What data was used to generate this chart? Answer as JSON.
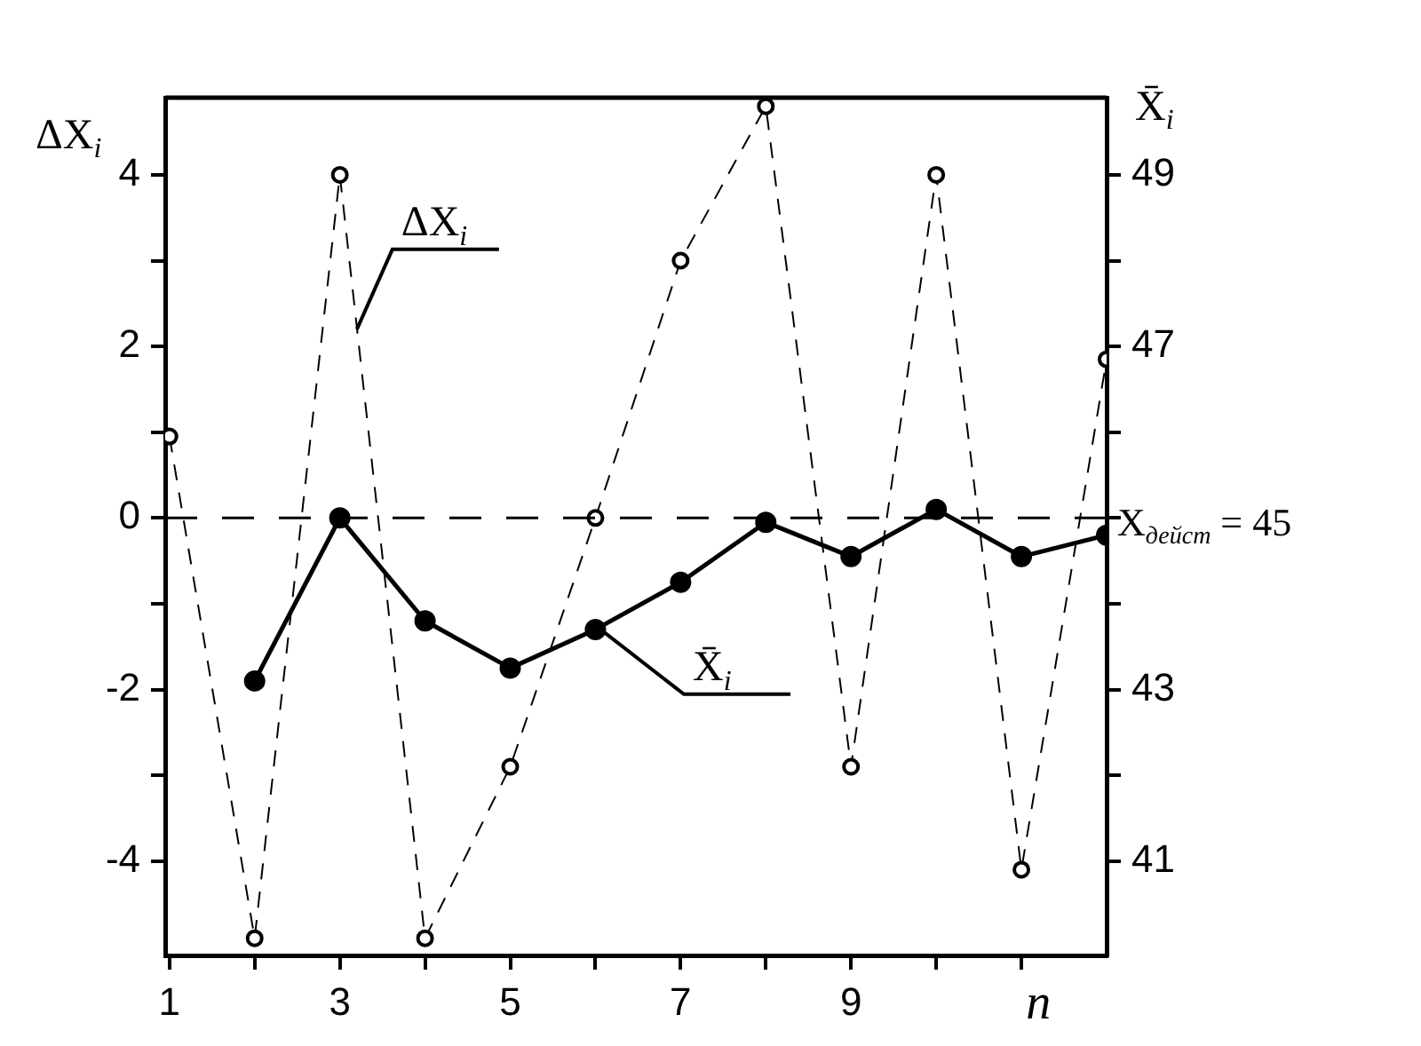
{
  "chart_data": {
    "type": "line",
    "xlabel": "n",
    "ylabel": "ΔX$_{i}$",
    "y2label": "X̄$_{i}$",
    "xlim": [
      0.95,
      12
    ],
    "xticks": [
      1,
      {
        "value": 2,
        "label": null
      },
      3,
      {
        "value": 4,
        "label": null
      },
      5,
      {
        "value": 6,
        "label": null
      },
      7,
      {
        "value": 8,
        "label": null
      },
      9,
      {
        "value": 10,
        "label": null
      },
      {
        "value": 11,
        "label": null
      }
    ],
    "ylim": [
      -5.1,
      4.9
    ],
    "yticks": [
      4,
      {
        "value": 3,
        "label": null
      },
      2,
      {
        "value": 1,
        "label": null
      },
      0,
      {
        "value": -1,
        "label": null
      },
      -2,
      {
        "value": -3,
        "label": null
      },
      -4
    ],
    "y2lim": [
      39.9,
      49.9
    ],
    "y2ticks": [
      49,
      {
        "value": 48,
        "label": null
      },
      47,
      {
        "value": 46,
        "label": null
      },
      {
        "value": 45,
        "label": null
      },
      {
        "value": 44,
        "label": null
      },
      43,
      {
        "value": 42,
        "label": null
      },
      41
    ],
    "series": [
      {
        "color": "#000000",
        "axis": "y",
        "line_style": "dashed",
        "marker": "circle",
        "x": [
          1,
          2,
          3,
          4,
          5,
          6,
          7,
          8,
          9,
          10,
          11,
          12
        ],
        "values": [
          0.95,
          -4.9,
          4.0,
          -4.9,
          -2.9,
          0,
          3.0,
          4.8,
          -2.9,
          4.0,
          -4.1,
          1.85
        ]
      },
      {
        "color": "#000000",
        "axis": "y2",
        "line_style": "solid",
        "marker": "circle",
        "x": [
          2,
          3,
          4,
          5,
          6,
          7,
          8,
          9,
          10,
          11,
          12
        ],
        "values": [
          43.1,
          45,
          43.8,
          43.25,
          43.7,
          44.25,
          44.95,
          44.55,
          45.1,
          44.55,
          44.8
        ]
      }
    ],
    "ref_lines": [
      {
        "axis": "y2",
        "value": 45,
        "label": "X$_{дейст}$ = 45",
        "color": "#000000",
        "line_style": "dashed"
      }
    ],
    "annotations": [
      {
        "text": "ΔX$_{i}$",
        "x": 3.2,
        "y": 2.2
      },
      {
        "text": "X̄$_{i}$",
        "x": 6.1,
        "y": -1.33
      }
    ],
    "grid": false,
    "legend": false
  }
}
